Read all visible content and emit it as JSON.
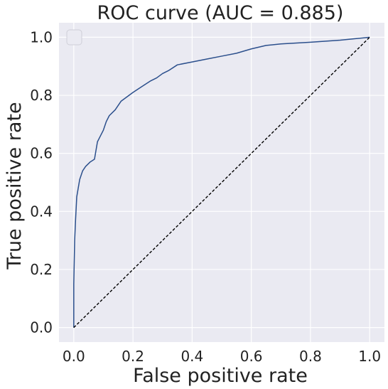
{
  "chart_data": {
    "type": "line",
    "title": "ROC curve (AUC = 0.885)",
    "xlabel": "False positive rate",
    "ylabel": "True positive rate",
    "xlim": [
      -0.05,
      1.05
    ],
    "ylim": [
      -0.05,
      1.05
    ],
    "xticks": [
      "0.0",
      "0.2",
      "0.4",
      "0.6",
      "0.8",
      "1.0"
    ],
    "yticks": [
      "0.0",
      "0.2",
      "0.4",
      "0.6",
      "0.8",
      "1.0"
    ],
    "grid": true,
    "legend": "top-left, empty",
    "series": [
      {
        "color": "#2b4f8c",
        "style": "solid",
        "x": [
          0.0,
          0.0,
          0.003,
          0.006,
          0.01,
          0.015,
          0.02,
          0.03,
          0.04,
          0.055,
          0.07,
          0.08,
          0.09,
          0.1,
          0.11,
          0.12,
          0.14,
          0.16,
          0.18,
          0.2,
          0.23,
          0.26,
          0.28,
          0.3,
          0.32,
          0.35,
          0.4,
          0.45,
          0.5,
          0.55,
          0.6,
          0.65,
          0.7,
          0.8,
          0.9,
          1.0
        ],
        "y": [
          0.0,
          0.15,
          0.3,
          0.37,
          0.45,
          0.48,
          0.51,
          0.54,
          0.555,
          0.57,
          0.58,
          0.64,
          0.66,
          0.68,
          0.71,
          0.73,
          0.75,
          0.78,
          0.795,
          0.81,
          0.83,
          0.85,
          0.86,
          0.875,
          0.885,
          0.905,
          0.915,
          0.925,
          0.935,
          0.945,
          0.96,
          0.972,
          0.977,
          0.983,
          0.99,
          1.0
        ]
      },
      {
        "color": "#000000",
        "style": "dashed",
        "x": [
          0.0,
          1.0
        ],
        "y": [
          0.0,
          1.0
        ]
      }
    ]
  }
}
